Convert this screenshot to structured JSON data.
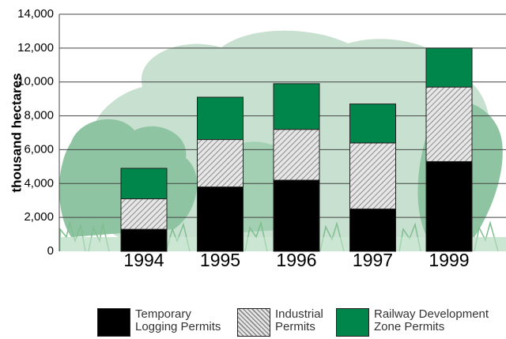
{
  "chart_data": {
    "type": "stacked-bar",
    "y_label": "thousand hectares",
    "categories": [
      "1994",
      "1995",
      "1996",
      "1997",
      "1999"
    ],
    "series": [
      {
        "name": "Temporary Logging Permits",
        "color": "#000000",
        "values": [
          1300,
          3800,
          4200,
          2500,
          5300
        ]
      },
      {
        "name": "Industrial Permits",
        "color": "#bdbdbd",
        "pattern": "hatch",
        "values": [
          1800,
          2800,
          3000,
          3900,
          4400
        ]
      },
      {
        "name": "Railway Development Zone Permits",
        "color": "#00854a",
        "values": [
          1800,
          2500,
          2700,
          2300,
          2300
        ]
      }
    ],
    "ylim": [
      0,
      14000
    ],
    "yticks": [
      0,
      {
        "value": 2000,
        "label": "2,000"
      },
      {
        "value": 4000,
        "label": "4,000"
      },
      {
        "value": 6000,
        "label": "6,000"
      },
      {
        "value": 8000,
        "label": "8,000"
      },
      {
        "value": 10000,
        "label": "10,000"
      },
      {
        "value": 12000,
        "label": "12,000"
      },
      {
        "value": 14000,
        "label": "14,000"
      }
    ],
    "grid": true
  }
}
